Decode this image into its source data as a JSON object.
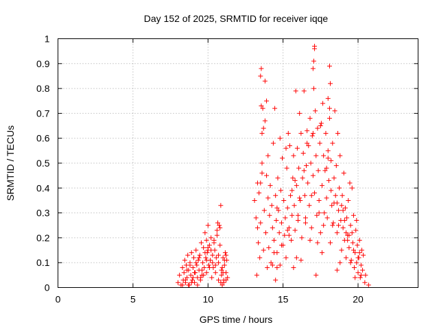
{
  "chart_data": {
    "type": "scatter",
    "title": "Day 152 of 2025, SRMTID for receiver iqqe",
    "xlabel": "GPS time / hours",
    "ylabel": "SRMTID / TECUs",
    "xlim": [
      0,
      24
    ],
    "ylim": [
      0,
      1
    ],
    "xticks": [
      0,
      5,
      10,
      15,
      20
    ],
    "xtick_labels": [
      "0",
      "5",
      "10",
      "15",
      "20"
    ],
    "yticks": [
      0,
      0.1,
      0.2,
      0.3,
      0.4,
      0.5,
      0.6,
      0.7,
      0.8,
      0.9,
      1
    ],
    "ytick_labels": [
      "0",
      "0.1",
      "0.2",
      "0.3",
      "0.4",
      "0.5",
      "0.6",
      "0.7",
      "0.8",
      "0.9",
      "1"
    ],
    "grid": true,
    "marker": "+",
    "color": "#ff0000",
    "series": [
      {
        "name": "SRMTID",
        "x": [
          8.0,
          8.1,
          8.2,
          8.3,
          8.35,
          8.4,
          8.45,
          8.5,
          8.55,
          8.6,
          8.65,
          8.7,
          8.75,
          8.8,
          8.85,
          8.9,
          8.95,
          9.0,
          9.05,
          9.1,
          9.15,
          9.2,
          9.25,
          9.3,
          9.35,
          9.4,
          9.45,
          9.5,
          9.55,
          9.6,
          9.65,
          9.7,
          9.75,
          9.8,
          9.85,
          9.9,
          9.95,
          10.0,
          10.05,
          10.1,
          10.15,
          10.2,
          10.25,
          10.3,
          10.35,
          10.4,
          10.45,
          10.5,
          10.55,
          10.6,
          10.65,
          10.7,
          10.75,
          10.8,
          10.85,
          10.9,
          10.95,
          11.0,
          11.05,
          11.1,
          11.15,
          11.2,
          11.25,
          11.3,
          8.3,
          8.6,
          8.9,
          9.2,
          9.5,
          9.8,
          10.1,
          10.4,
          10.7,
          11.0,
          11.2,
          8.5,
          8.8,
          9.1,
          9.4,
          9.7,
          10.0,
          10.3,
          10.6,
          10.9,
          11.1,
          9.3,
          9.6,
          9.9,
          10.2,
          10.5,
          10.8,
          10.85,
          10.95,
          11.05,
          8.7,
          9.0,
          9.9,
          10.0,
          10.7,
          11.2,
          13.1,
          13.2,
          13.25,
          13.3,
          13.35,
          13.4,
          13.45,
          13.5,
          13.55,
          13.6,
          13.65,
          13.7,
          13.75,
          13.8,
          13.85,
          13.9,
          13.95,
          14.0,
          14.05,
          14.1,
          14.15,
          14.2,
          14.25,
          14.3,
          14.35,
          14.4,
          14.45,
          14.5,
          14.55,
          14.6,
          14.65,
          14.7,
          14.75,
          14.8,
          14.85,
          14.9,
          14.95,
          15.0,
          15.05,
          15.1,
          15.15,
          15.2,
          15.25,
          15.3,
          15.35,
          15.4,
          15.45,
          15.5,
          15.55,
          15.6,
          15.65,
          15.7,
          15.75,
          15.8,
          15.85,
          15.9,
          15.95,
          16.0,
          16.05,
          16.1,
          16.15,
          16.2,
          16.25,
          16.3,
          16.35,
          16.4,
          16.45,
          16.5,
          16.55,
          16.6,
          16.65,
          16.7,
          16.75,
          16.8,
          16.85,
          16.9,
          16.95,
          17.0,
          17.05,
          17.1,
          17.15,
          17.2,
          17.25,
          17.3,
          17.35,
          17.4,
          17.45,
          17.5,
          17.55,
          17.6,
          17.65,
          17.7,
          17.75,
          17.8,
          17.85,
          17.9,
          17.95,
          18.0,
          18.05,
          18.1,
          18.15,
          18.2,
          18.25,
          18.3,
          18.35,
          18.4,
          18.45,
          18.5,
          18.55,
          18.6,
          18.65,
          18.7,
          18.75,
          18.8,
          18.85,
          18.9,
          18.95,
          19.0,
          19.05,
          19.1,
          19.15,
          19.2,
          19.25,
          19.3,
          19.35,
          19.4,
          19.45,
          19.5,
          19.55,
          19.6,
          19.65,
          19.7,
          19.75,
          19.8,
          19.85,
          19.9,
          19.95,
          20.0,
          20.05,
          20.1,
          20.15,
          20.2,
          20.25,
          20.3,
          20.35,
          20.45,
          20.5,
          20.7,
          13.3,
          13.5,
          13.7,
          13.8,
          13.9,
          14.3,
          14.5,
          14.6,
          14.9,
          15.2,
          15.4,
          15.7,
          15.8,
          16.1,
          16.2,
          16.5,
          16.8,
          17.0,
          17.1,
          17.2,
          17.4,
          17.6,
          17.9,
          18.1,
          18.2,
          18.3,
          18.6,
          18.9,
          19.2,
          19.5,
          19.8,
          13.6,
          14.0,
          14.4,
          14.8,
          15.3,
          15.6,
          16.0,
          16.4,
          16.9,
          17.3,
          17.7,
          18.0,
          18.4,
          18.8,
          19.1,
          19.4,
          19.7,
          20.0,
          20.2,
          13.5,
          13.55,
          13.6,
          14.6,
          15.9,
          16.6,
          17.0,
          17.05,
          17.1,
          17.5,
          18.0,
          18.1,
          18.15,
          18.6,
          18.7,
          19.0,
          19.3,
          19.6,
          19.9,
          20.1
        ],
        "y": [
          0.02,
          0.05,
          0.01,
          0.08,
          0.03,
          0.06,
          0.11,
          0.02,
          0.09,
          0.04,
          0.13,
          0.07,
          0.01,
          0.1,
          0.05,
          0.14,
          0.03,
          0.08,
          0.12,
          0.02,
          0.06,
          0.15,
          0.09,
          0.04,
          0.11,
          0.07,
          0.13,
          0.03,
          0.18,
          0.05,
          0.1,
          0.16,
          0.08,
          0.22,
          0.12,
          0.06,
          0.14,
          0.25,
          0.09,
          0.17,
          0.11,
          0.2,
          0.04,
          0.13,
          0.08,
          0.19,
          0.15,
          0.06,
          0.12,
          0.23,
          0.26,
          0.1,
          0.25,
          0.17,
          0.02,
          0.05,
          0.08,
          0.12,
          0.03,
          0.09,
          0.14,
          0.06,
          0.11,
          0.04,
          0.01,
          0.07,
          0.02,
          0.1,
          0.04,
          0.14,
          0.08,
          0.18,
          0.03,
          0.06,
          0.13,
          0.03,
          0.09,
          0.06,
          0.12,
          0.05,
          0.16,
          0.1,
          0.21,
          0.07,
          0.11,
          0.01,
          0.07,
          0.11,
          0.15,
          0.09,
          0.24,
          0.33,
          0.01,
          0.02,
          0.01,
          0.04,
          0.19,
          0.15,
          0.13,
          0.03,
          0.35,
          0.28,
          0.05,
          0.42,
          0.18,
          0.38,
          0.12,
          0.26,
          0.88,
          0.5,
          0.72,
          0.64,
          0.31,
          0.83,
          0.22,
          0.45,
          0.08,
          0.36,
          0.16,
          0.29,
          0.41,
          0.1,
          0.33,
          0.24,
          0.58,
          0.19,
          0.72,
          0.37,
          0.27,
          0.14,
          0.44,
          0.31,
          0.22,
          0.09,
          0.39,
          0.26,
          0.52,
          0.17,
          0.35,
          0.21,
          0.28,
          0.12,
          0.48,
          0.32,
          0.62,
          0.24,
          0.57,
          0.37,
          0.19,
          0.29,
          0.44,
          0.53,
          0.33,
          0.23,
          0.79,
          0.41,
          0.56,
          0.27,
          0.48,
          0.7,
          0.35,
          0.62,
          0.2,
          0.44,
          0.54,
          0.79,
          0.37,
          0.28,
          0.49,
          0.63,
          0.42,
          0.57,
          0.33,
          0.68,
          0.5,
          0.24,
          0.61,
          0.45,
          0.8,
          0.38,
          0.71,
          0.53,
          0.29,
          0.64,
          0.47,
          0.35,
          0.58,
          0.22,
          0.66,
          0.41,
          0.74,
          0.53,
          0.3,
          0.47,
          0.62,
          0.36,
          0.28,
          0.55,
          0.43,
          0.68,
          0.18,
          0.51,
          0.33,
          0.58,
          0.26,
          0.44,
          0.71,
          0.37,
          0.49,
          0.22,
          0.62,
          0.31,
          0.4,
          0.53,
          0.27,
          0.15,
          0.37,
          0.24,
          0.46,
          0.19,
          0.32,
          0.12,
          0.28,
          0.21,
          0.35,
          0.16,
          0.42,
          0.25,
          0.11,
          0.22,
          0.18,
          0.29,
          0.08,
          0.14,
          0.23,
          0.1,
          0.17,
          0.06,
          0.12,
          0.19,
          0.04,
          0.09,
          0.15,
          0.07,
          0.13,
          0.02,
          0.05,
          0.01,
          0.24,
          0.42,
          0.15,
          0.67,
          0.75,
          0.09,
          0.03,
          0.32,
          0.17,
          0.56,
          0.21,
          0.08,
          0.43,
          0.36,
          0.11,
          0.26,
          0.19,
          0.62,
          0.97,
          0.05,
          0.3,
          0.14,
          0.48,
          0.72,
          0.39,
          0.25,
          0.07,
          0.33,
          0.22,
          0.1,
          0.04,
          0.46,
          0.53,
          0.14,
          0.6,
          0.23,
          0.39,
          0.29,
          0.47,
          0.37,
          0.18,
          0.25,
          0.52,
          0.34,
          0.1,
          0.27,
          0.21,
          0.15,
          0.12,
          0.05,
          0.85,
          0.73,
          0.62,
          0.08,
          0.12,
          0.58,
          0.88,
          0.91,
          0.96,
          0.65,
          0.76,
          0.89,
          0.82,
          0.34,
          0.25,
          0.31,
          0.19,
          0.4,
          0.27,
          0.14
        ]
      }
    ]
  }
}
